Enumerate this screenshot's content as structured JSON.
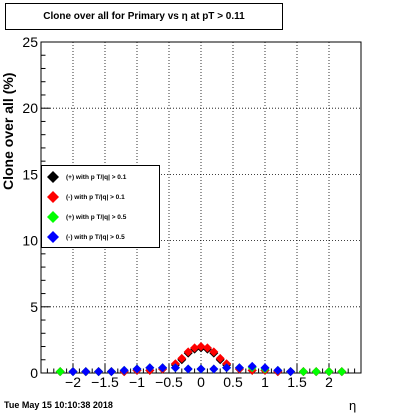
{
  "chart_data": {
    "type": "scatter",
    "title": "Clone  over all for Primary vs   η at pT > 0.11",
    "xlabel": "η",
    "ylabel": "Clone  over all (%)",
    "xlim": [
      -2.5,
      2.5
    ],
    "ylim": [
      0,
      25
    ],
    "xticks": [
      -2,
      -1.5,
      -1,
      -0.5,
      0,
      0.5,
      1,
      1.5,
      2
    ],
    "xtick_labels": [
      "−2",
      "−1.5",
      "−1",
      "−0.5",
      "0",
      "0.5",
      "1",
      "1.5",
      "2"
    ],
    "yticks": [
      0,
      5,
      10,
      15,
      20,
      25
    ],
    "ytick_labels": [
      "0",
      "5",
      "10",
      "15",
      "20",
      "25"
    ],
    "grid": true,
    "legend_position": "left-middle",
    "series": [
      {
        "name": "(+) with p T/|q| > 0.1",
        "color": "#000000",
        "x": [
          -2.2,
          -2.0,
          -1.8,
          -1.6,
          -1.4,
          -1.2,
          -1.0,
          -0.8,
          -0.6,
          -0.4,
          -0.3,
          -0.2,
          -0.1,
          0.0,
          0.1,
          0.2,
          0.3,
          0.4,
          0.6,
          0.8,
          1.0,
          1.2,
          1.4,
          1.6,
          1.8,
          2.0,
          2.2
        ],
        "y": [
          0.1,
          0.1,
          0.1,
          0.1,
          0.1,
          0.1,
          0.2,
          0.2,
          0.3,
          0.6,
          1.0,
          1.5,
          1.8,
          1.9,
          1.8,
          1.5,
          1.0,
          0.6,
          0.3,
          0.2,
          0.2,
          0.1,
          0.1,
          0.1,
          0.1,
          0.1,
          0.1
        ]
      },
      {
        "name": "(-) with p T/|q| > 0.1",
        "color": "#ff0000",
        "x": [
          -2.2,
          -2.0,
          -1.8,
          -1.6,
          -1.4,
          -1.2,
          -1.0,
          -0.8,
          -0.6,
          -0.4,
          -0.3,
          -0.2,
          -0.1,
          0.0,
          0.1,
          0.2,
          0.3,
          0.4,
          0.6,
          0.8,
          1.0,
          1.2,
          1.4,
          1.6,
          1.8,
          2.0,
          2.2
        ],
        "y": [
          0.1,
          0.1,
          0.1,
          0.1,
          0.1,
          0.1,
          0.2,
          0.2,
          0.3,
          0.7,
          1.1,
          1.6,
          1.9,
          2.0,
          1.9,
          1.6,
          1.1,
          0.7,
          0.3,
          0.2,
          0.2,
          0.1,
          0.1,
          0.1,
          0.1,
          0.1,
          0.1
        ]
      },
      {
        "name": "(+) with p T/|q| > 0.5",
        "color": "#00ff00",
        "x": [
          -2.2,
          -2.0,
          -1.8,
          -1.6,
          -1.4,
          -1.2,
          -1.0,
          -0.8,
          -0.6,
          -0.4,
          -0.2,
          0.0,
          0.2,
          0.4,
          0.6,
          0.8,
          1.0,
          1.2,
          1.4,
          1.6,
          1.8,
          2.0,
          2.2
        ],
        "y": [
          0.1,
          0.1,
          0.1,
          0.1,
          0.1,
          0.2,
          0.3,
          0.4,
          0.4,
          0.4,
          0.3,
          0.3,
          0.3,
          0.4,
          0.4,
          0.4,
          0.3,
          0.2,
          0.1,
          0.1,
          0.1,
          0.1,
          0.1
        ]
      },
      {
        "name": "(-) with p T/|q| > 0.5",
        "color": "#0000ff",
        "x": [
          -2.0,
          -1.8,
          -1.6,
          -1.4,
          -1.2,
          -1.0,
          -0.8,
          -0.6,
          -0.4,
          -0.2,
          0.0,
          0.2,
          0.4,
          0.6,
          0.8,
          1.0,
          1.2,
          1.4
        ],
        "y": [
          0.1,
          0.1,
          0.1,
          0.1,
          0.2,
          0.3,
          0.4,
          0.4,
          0.4,
          0.3,
          0.3,
          0.3,
          0.4,
          0.4,
          0.5,
          0.4,
          0.2,
          0.1
        ]
      }
    ]
  },
  "footer": {
    "datestamp": "Tue May 15 10:10:38 2018"
  }
}
